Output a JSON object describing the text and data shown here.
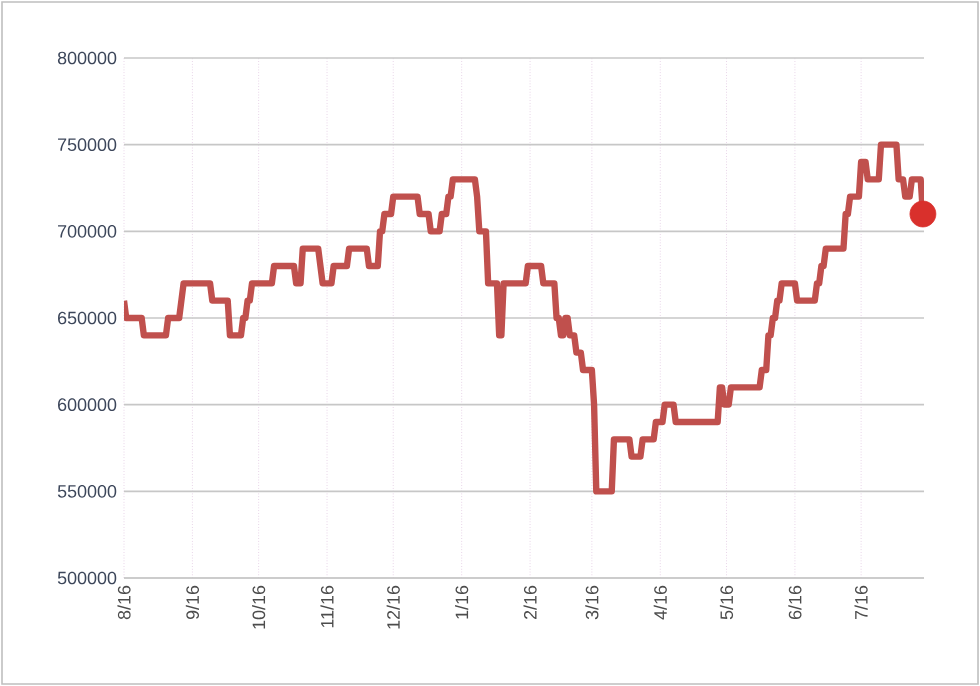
{
  "chart_data": {
    "type": "line",
    "categories": [
      "8/16",
      null,
      null,
      null,
      null,
      null,
      null,
      null,
      null,
      null,
      null,
      null,
      null,
      null,
      null,
      null,
      null,
      null,
      null,
      null,
      null,
      null,
      null,
      null,
      null,
      null,
      null,
      null,
      null,
      null,
      null,
      "9/16",
      null,
      null,
      null,
      null,
      null,
      null,
      null,
      null,
      null,
      null,
      null,
      null,
      null,
      null,
      null,
      null,
      null,
      null,
      null,
      null,
      null,
      null,
      null,
      null,
      null,
      null,
      null,
      null,
      null,
      "10/16",
      null,
      null,
      null,
      null,
      null,
      null,
      null,
      null,
      null,
      null,
      null,
      null,
      null,
      null,
      null,
      null,
      null,
      null,
      null,
      null,
      null,
      null,
      null,
      null,
      null,
      null,
      null,
      null,
      null,
      null,
      "11/16",
      null,
      null,
      null,
      null,
      null,
      null,
      null,
      null,
      null,
      null,
      null,
      null,
      null,
      null,
      null,
      null,
      null,
      null,
      null,
      null,
      null,
      null,
      null,
      null,
      null,
      null,
      null,
      null,
      null,
      "12/16",
      null,
      null,
      null,
      null,
      null,
      null,
      null,
      null,
      null,
      null,
      null,
      null,
      null,
      null,
      null,
      null,
      null,
      null,
      null,
      null,
      null,
      null,
      null,
      null,
      null,
      null,
      null,
      null,
      null,
      null,
      "1/16",
      null,
      null,
      null,
      null,
      null,
      null,
      null,
      null,
      null,
      null,
      null,
      null,
      null,
      null,
      null,
      null,
      null,
      null,
      null,
      null,
      null,
      null,
      null,
      null,
      null,
      null,
      null,
      null,
      null,
      null,
      "2/16",
      null,
      null,
      null,
      null,
      null,
      null,
      null,
      null,
      null,
      null,
      null,
      null,
      null,
      null,
      null,
      null,
      null,
      null,
      null,
      null,
      null,
      null,
      null,
      null,
      null,
      null,
      null,
      "3/16",
      null,
      null,
      null,
      null,
      null,
      null,
      null,
      null,
      null,
      null,
      null,
      null,
      null,
      null,
      null,
      null,
      null,
      null,
      null,
      null,
      null,
      null,
      null,
      null,
      null,
      null,
      null,
      null,
      null,
      null,
      "4/16",
      null,
      null,
      null,
      null,
      null,
      null,
      null,
      null,
      null,
      null,
      null,
      null,
      null,
      null,
      null,
      null,
      null,
      null,
      null,
      null,
      null,
      null,
      null,
      null,
      null,
      null,
      null,
      null,
      null,
      "5/16",
      null,
      null,
      null,
      null,
      null,
      null,
      null,
      null,
      null,
      null,
      null,
      null,
      null,
      null,
      null,
      null,
      null,
      null,
      null,
      null,
      null,
      null,
      null,
      null,
      null,
      null,
      null,
      null,
      null,
      null,
      "6/16",
      null,
      null,
      null,
      null,
      null,
      null,
      null,
      null,
      null,
      null,
      null,
      null,
      null,
      null,
      null,
      null,
      null,
      null,
      null,
      null,
      null,
      null,
      null,
      null,
      null,
      null,
      null,
      null,
      null,
      "7/16",
      null,
      null,
      null,
      null,
      null,
      null,
      null,
      null,
      null,
      null,
      null,
      null,
      null,
      null,
      null,
      null,
      null,
      null,
      null,
      null,
      null,
      null,
      null,
      null,
      null,
      null,
      null,
      null
    ],
    "series": [
      {
        "color": "#c0504d",
        "marker": "none",
        "values": [
          660000,
          650000,
          650000,
          650000,
          650000,
          650000,
          650000,
          650000,
          650000,
          640000,
          640000,
          640000,
          640000,
          640000,
          640000,
          640000,
          640000,
          640000,
          640000,
          640000,
          650000,
          650000,
          650000,
          650000,
          650000,
          650000,
          660000,
          670000,
          670000,
          670000,
          670000,
          670000,
          670000,
          670000,
          670000,
          670000,
          670000,
          670000,
          670000,
          670000,
          660000,
          660000,
          660000,
          660000,
          660000,
          660000,
          660000,
          660000,
          640000,
          640000,
          640000,
          640000,
          640000,
          640000,
          650000,
          650000,
          660000,
          660000,
          670000,
          670000,
          670000,
          670000,
          670000,
          670000,
          670000,
          670000,
          670000,
          670000,
          680000,
          680000,
          680000,
          680000,
          680000,
          680000,
          680000,
          680000,
          680000,
          680000,
          670000,
          670000,
          670000,
          690000,
          690000,
          690000,
          690000,
          690000,
          690000,
          690000,
          690000,
          680000,
          670000,
          670000,
          670000,
          670000,
          670000,
          680000,
          680000,
          680000,
          680000,
          680000,
          680000,
          680000,
          690000,
          690000,
          690000,
          690000,
          690000,
          690000,
          690000,
          690000,
          690000,
          680000,
          680000,
          680000,
          680000,
          680000,
          700000,
          700000,
          710000,
          710000,
          710000,
          710000,
          720000,
          720000,
          720000,
          720000,
          720000,
          720000,
          720000,
          720000,
          720000,
          720000,
          720000,
          720000,
          710000,
          710000,
          710000,
          710000,
          710000,
          700000,
          700000,
          700000,
          700000,
          700000,
          710000,
          710000,
          710000,
          720000,
          720000,
          730000,
          730000,
          730000,
          730000,
          730000,
          730000,
          730000,
          730000,
          730000,
          730000,
          730000,
          720000,
          700000,
          700000,
          700000,
          700000,
          670000,
          670000,
          670000,
          670000,
          670000,
          640000,
          640000,
          670000,
          670000,
          670000,
          670000,
          670000,
          670000,
          670000,
          670000,
          670000,
          670000,
          670000,
          680000,
          680000,
          680000,
          680000,
          680000,
          680000,
          680000,
          670000,
          670000,
          670000,
          670000,
          670000,
          670000,
          650000,
          650000,
          640000,
          640000,
          650000,
          650000,
          640000,
          640000,
          640000,
          630000,
          630000,
          630000,
          620000,
          620000,
          620000,
          620000,
          620000,
          600000,
          550000,
          550000,
          550000,
          550000,
          550000,
          550000,
          550000,
          550000,
          580000,
          580000,
          580000,
          580000,
          580000,
          580000,
          580000,
          580000,
          570000,
          570000,
          570000,
          570000,
          570000,
          580000,
          580000,
          580000,
          580000,
          580000,
          580000,
          590000,
          590000,
          590000,
          590000,
          600000,
          600000,
          600000,
          600000,
          600000,
          590000,
          590000,
          590000,
          590000,
          590000,
          590000,
          590000,
          590000,
          590000,
          590000,
          590000,
          590000,
          590000,
          590000,
          590000,
          590000,
          590000,
          590000,
          590000,
          590000,
          610000,
          610000,
          600000,
          600000,
          600000,
          610000,
          610000,
          610000,
          610000,
          610000,
          610000,
          610000,
          610000,
          610000,
          610000,
          610000,
          610000,
          610000,
          610000,
          620000,
          620000,
          620000,
          640000,
          640000,
          650000,
          650000,
          660000,
          660000,
          670000,
          670000,
          670000,
          670000,
          670000,
          670000,
          670000,
          660000,
          660000,
          660000,
          660000,
          660000,
          660000,
          660000,
          660000,
          660000,
          670000,
          670000,
          680000,
          680000,
          690000,
          690000,
          690000,
          690000,
          690000,
          690000,
          690000,
          690000,
          690000,
          710000,
          710000,
          720000,
          720000,
          720000,
          720000,
          720000,
          740000,
          740000,
          740000,
          730000,
          730000,
          730000,
          730000,
          730000,
          730000,
          750000,
          750000,
          750000,
          750000,
          750000,
          750000,
          750000,
          750000,
          730000,
          730000,
          730000,
          720000,
          720000,
          720000,
          730000,
          730000,
          730000,
          730000,
          730000,
          710000
        ]
      },
      {
        "type": "scatter",
        "color": "#d9302c",
        "marker": "circle",
        "values": [
          null,
          null,
          null,
          null,
          null,
          null,
          null,
          null,
          null,
          null,
          null,
          null,
          null,
          null,
          null,
          null,
          null,
          null,
          null,
          null,
          null,
          null,
          null,
          null,
          null,
          null,
          null,
          null,
          null,
          null,
          null,
          null,
          null,
          null,
          null,
          null,
          null,
          null,
          null,
          null,
          null,
          null,
          null,
          null,
          null,
          null,
          null,
          null,
          null,
          null,
          null,
          null,
          null,
          null,
          null,
          null,
          null,
          null,
          null,
          null,
          null,
          null,
          null,
          null,
          null,
          null,
          null,
          null,
          null,
          null,
          null,
          null,
          null,
          null,
          null,
          null,
          null,
          null,
          null,
          null,
          null,
          null,
          null,
          null,
          null,
          null,
          null,
          null,
          null,
          null,
          null,
          null,
          null,
          null,
          null,
          null,
          null,
          null,
          null,
          null,
          null,
          null,
          null,
          null,
          null,
          null,
          null,
          null,
          null,
          null,
          null,
          null,
          null,
          null,
          null,
          null,
          null,
          null,
          null,
          null,
          null,
          null,
          null,
          null,
          null,
          null,
          null,
          null,
          null,
          null,
          null,
          null,
          null,
          null,
          null,
          null,
          null,
          null,
          null,
          null,
          null,
          null,
          null,
          null,
          null,
          null,
          null,
          null,
          null,
          null,
          null,
          null,
          null,
          null,
          null,
          null,
          null,
          null,
          null,
          null,
          null,
          null,
          null,
          null,
          null,
          null,
          null,
          null,
          null,
          null,
          null,
          null,
          null,
          null,
          null,
          null,
          null,
          null,
          null,
          null,
          null,
          null,
          null,
          null,
          null,
          null,
          null,
          null,
          null,
          null,
          null,
          null,
          null,
          null,
          null,
          null,
          null,
          null,
          null,
          null,
          null,
          null,
          null,
          null,
          null,
          null,
          null,
          null,
          null,
          null,
          null,
          null,
          null,
          null,
          null,
          null,
          null,
          null,
          null,
          null,
          null,
          null,
          null,
          null,
          null,
          null,
          null,
          null,
          null,
          null,
          null,
          null,
          null,
          null,
          null,
          null,
          null,
          null,
          null,
          null,
          null,
          null,
          null,
          null,
          null,
          null,
          null,
          null,
          null,
          null,
          null,
          null,
          null,
          null,
          null,
          null,
          null,
          null,
          null,
          null,
          null,
          null,
          null,
          null,
          null,
          null,
          null,
          null,
          null,
          null,
          null,
          null,
          null,
          null,
          null,
          null,
          null,
          null,
          null,
          null,
          null,
          null,
          null,
          null,
          null,
          null,
          null,
          null,
          null,
          null,
          null,
          null,
          null,
          null,
          null,
          null,
          null,
          null,
          null,
          null,
          null,
          null,
          null,
          null,
          null,
          null,
          null,
          null,
          null,
          null,
          null,
          null,
          null,
          null,
          null,
          null,
          null,
          null,
          null,
          null,
          null,
          null,
          null,
          null,
          null,
          null,
          null,
          null,
          null,
          null,
          null,
          null,
          null,
          null,
          null,
          null,
          null,
          null,
          null,
          null,
          null,
          null,
          null,
          null,
          null,
          null,
          null,
          null,
          null,
          null,
          null,
          null,
          null,
          null,
          null,
          null,
          null,
          null,
          null,
          null,
          null,
          null,
          710000
        ]
      }
    ],
    "ylim": [
      500000,
      800000
    ],
    "yticks": [
      500000,
      550000,
      600000,
      650000,
      700000,
      750000,
      800000
    ],
    "grid": true,
    "legend": false
  }
}
